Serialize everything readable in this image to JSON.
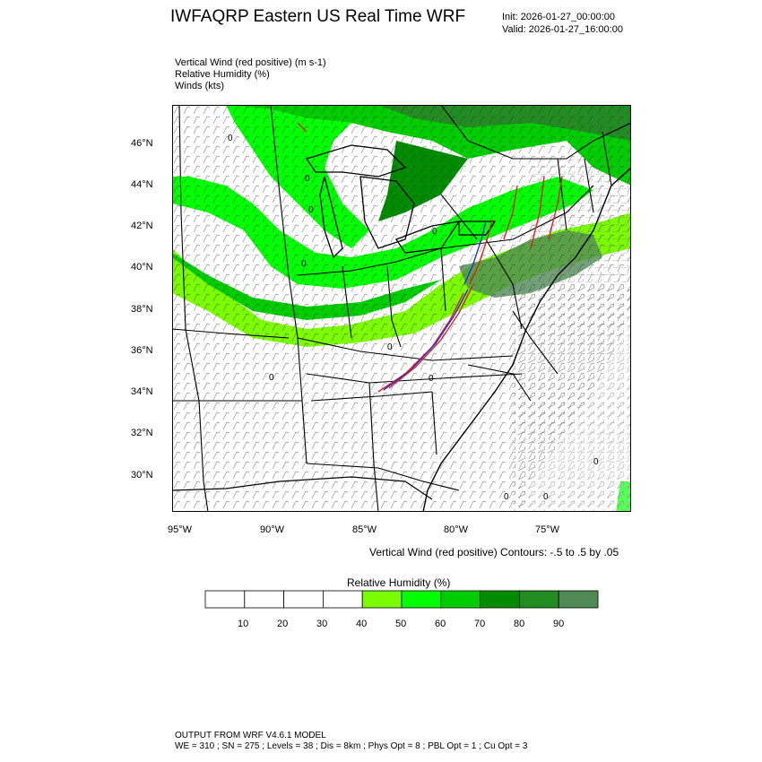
{
  "header": {
    "title": "IWFAQRP Eastern US Real Time WRF",
    "init": "Init: 2026-01-27_00:00:00",
    "valid": "Valid: 2026-01-27_16:00:00"
  },
  "fields": {
    "line1": "Vertical Wind (red positive)   (m s-1)",
    "line2": "Relative Humidity   (%)",
    "line3": "Winds   (kts)"
  },
  "axes": {
    "lat_labels": [
      "46°N",
      "44°N",
      "42°N",
      "40°N",
      "38°N",
      "36°N",
      "34°N",
      "32°N",
      "30°N"
    ],
    "lon_labels": [
      "95°W",
      "90°W",
      "85°W",
      "80°W",
      "75°W"
    ]
  },
  "contour_note": "Vertical Wind (red positive) Contours: -.5 to .5 by .05",
  "colorbar": {
    "title": "Relative Humidity   (%)",
    "labels": [
      "10",
      "20",
      "30",
      "40",
      "50",
      "60",
      "70",
      "80",
      "90"
    ],
    "colors": [
      "#ffffff",
      "#ffffff",
      "#ffffff",
      "#ffffff",
      "#7cfc00",
      "#00ff00",
      "#00cd00",
      "#008b00",
      "#228b22",
      "#4f8a55"
    ]
  },
  "contour_zero_label": "0",
  "footer": {
    "line1": "OUTPUT FROM WRF V4.6.1 MODEL",
    "line2": "WE = 310 ; SN = 275 ; Levels = 38 ; Dis = 8km ; Phys Opt = 8 ; PBL Opt = 1 ; Cu Opt = 3"
  }
}
